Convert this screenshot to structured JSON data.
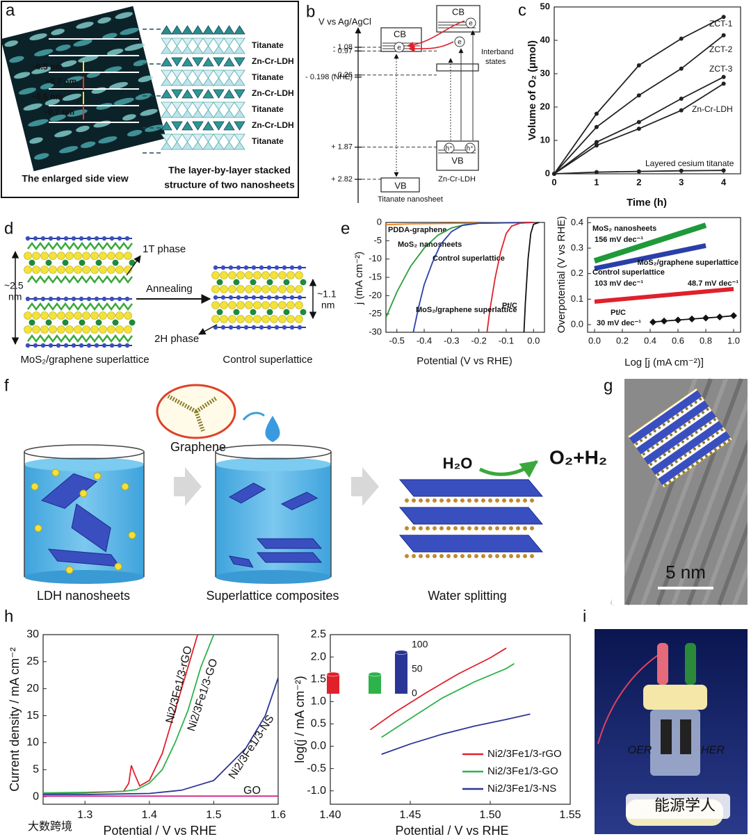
{
  "panel_labels": [
    "a",
    "b",
    "c",
    "d",
    "e",
    "f",
    "g",
    "h",
    "i"
  ],
  "panel_a": {
    "spacings": [
      "~0.5 nm",
      "~0.7 nm",
      "~0.5 nm",
      "~0.7 nm"
    ],
    "layers": [
      "Titanate",
      "Zn-Cr-LDH",
      "Titanate",
      "Zn-Cr-LDH",
      "Titanate",
      "Zn-Cr-LDH",
      "Titanate"
    ],
    "captions": [
      "The enlarged side view",
      "The layer-by-layer stacked",
      "structure of two nanosheets"
    ]
  },
  "panel_b": {
    "axis_label": "V vs Ag/AgCl",
    "levels": [
      {
        "value": -1.08,
        "label": "- 1.08"
      },
      {
        "value": -0.97,
        "label": "- 0.97"
      },
      {
        "value": -0.26,
        "label": "- 0.26"
      },
      {
        "value": -0.198,
        "label": "- 0.198 (NHE)"
      },
      {
        "value": 1.87,
        "label": "+ 1.87"
      },
      {
        "value": 2.82,
        "label": "+ 2.82"
      }
    ],
    "band_labels": [
      "CB",
      "CB",
      "VB",
      "VB"
    ],
    "interband": [
      "Interband",
      "states"
    ],
    "materials": [
      "Titanate nanosheet",
      "Zn-Cr-LDH"
    ],
    "carriers": [
      "e",
      "e",
      "e",
      "h⁺",
      "h⁺"
    ]
  },
  "panel_d": {
    "phases": [
      "1T phase",
      "2H phase"
    ],
    "process": "Annealing",
    "spacings": [
      [
        "~2.5",
        "nm"
      ],
      [
        "~1.1",
        "nm"
      ]
    ],
    "captions": [
      "MoS₂/graphene superlattice",
      "Control superlattice"
    ]
  },
  "panel_f": {
    "graphene": "Graphene",
    "reaction": [
      "H₂O",
      "O₂+H₂"
    ],
    "captions": [
      "LDH nanosheets",
      "Superlattice composites",
      "Water splitting"
    ]
  },
  "panel_g": {
    "scale_bar": "5 nm"
  },
  "panel_i": {
    "electrodes": [
      "OER",
      "HER"
    ]
  },
  "watermarks": [
    "能源学人",
    "大数跨境"
  ],
  "chart_data": [
    {
      "type": "line",
      "xlabel": "Time (h)",
      "ylabel": "Volume of O₂ (μmol)",
      "xlim": [
        0,
        4.4
      ],
      "ylim": [
        0,
        50
      ],
      "xticks": [
        0,
        1,
        2,
        3,
        4
      ],
      "yticks": [
        0,
        10,
        20,
        30,
        40,
        50
      ],
      "legend": "inline",
      "x": [
        0,
        1,
        2,
        3,
        4
      ],
      "series": [
        {
          "name": "ZCT-1",
          "color": "#222222",
          "marker": "circle",
          "values": [
            0,
            18,
            32.5,
            40.5,
            47
          ]
        },
        {
          "name": "ZCT-2",
          "color": "#222222",
          "marker": "circle",
          "values": [
            0,
            14,
            23.5,
            31.5,
            41.5
          ]
        },
        {
          "name": "ZCT-3",
          "color": "#222222",
          "marker": "circle",
          "values": [
            0,
            9.5,
            15.5,
            22.5,
            29
          ]
        },
        {
          "name": "Zn-Cr-LDH",
          "color": "#222222",
          "marker": "circle",
          "values": [
            0,
            8.5,
            13.5,
            19,
            27
          ]
        },
        {
          "name": "Layered cesium titanate",
          "color": "#222222",
          "marker": "circle",
          "values": [
            0,
            0.5,
            0.7,
            0.9,
            1
          ]
        }
      ]
    },
    {
      "type": "line",
      "xlabel": "Potential (V vs RHE)",
      "ylabel": "j (mA cm⁻²)",
      "xlim": [
        -0.54,
        0.04
      ],
      "ylim": [
        -30,
        0
      ],
      "xticks": [
        -0.5,
        -0.4,
        -0.3,
        -0.2,
        -0.1,
        {
          "value": 0,
          "label": "0.0"
        }
      ],
      "yticks": [
        0,
        -5,
        -10,
        -15,
        -20,
        -25,
        -30
      ],
      "legend": "inline",
      "series": [
        {
          "name": "PDDA-graphene",
          "color": "#f07f1a",
          "x": [
            -0.54,
            -0.45,
            -0.35,
            -0.25,
            -0.15,
            0
          ],
          "values": [
            -0.6,
            -0.4,
            -0.3,
            -0.2,
            -0.1,
            0
          ]
        },
        {
          "name": "MoS₂ nanosheets",
          "color": "#2a9d3a",
          "x": [
            -0.54,
            -0.5,
            -0.45,
            -0.4,
            -0.35,
            -0.3,
            -0.25,
            -0.2,
            0
          ],
          "values": [
            -26,
            -19,
            -12,
            -7,
            -3.5,
            -1.5,
            -0.6,
            -0.2,
            0
          ]
        },
        {
          "name": "Control superlattice",
          "color": "#2b3fa8",
          "x": [
            -0.44,
            -0.42,
            -0.4,
            -0.37,
            -0.34,
            -0.3,
            -0.26,
            -0.2,
            0
          ],
          "values": [
            -30,
            -23,
            -17,
            -11,
            -6,
            -2.5,
            -0.8,
            -0.2,
            0
          ]
        },
        {
          "name": "MoS₂/graphene superlattice",
          "color": "#e0202a",
          "x": [
            -0.17,
            -0.16,
            -0.14,
            -0.12,
            -0.1,
            -0.08,
            -0.05,
            0
          ],
          "values": [
            -30,
            -24,
            -15,
            -8,
            -3,
            -1,
            -0.2,
            0
          ]
        },
        {
          "name": "Pt/C",
          "color": "#111111",
          "x": [
            -0.035,
            -0.03,
            -0.02,
            -0.01,
            0,
            0.02
          ],
          "values": [
            -30,
            -22,
            -10,
            -3,
            -0.5,
            0
          ]
        }
      ]
    },
    {
      "type": "line",
      "xlabel": "Log [j (mA cm⁻²)]",
      "ylabel": "Overpotential (V vs RHE)",
      "xlim": [
        -0.05,
        1.05
      ],
      "ylim": [
        -0.03,
        0.42
      ],
      "xticks": [
        {
          "value": 0,
          "label": "0.0"
        },
        0.2,
        0.4,
        0.6,
        0.8,
        {
          "value": 1,
          "label": "1.0"
        }
      ],
      "yticks": [
        {
          "value": 0,
          "label": "0.0"
        },
        0.1,
        0.2,
        0.3,
        0.4
      ],
      "legend": "inline",
      "series": [
        {
          "name": "MoS₂ nanosheets",
          "annotation": "156 mV dec⁻¹",
          "color": "#1f9a3a",
          "line_width": 8,
          "x": [
            0,
            0.8
          ],
          "values": [
            0.25,
            0.39
          ]
        },
        {
          "name": "Control superlattice",
          "annotation": "103 mV dec⁻¹",
          "color": "#2b3fa8",
          "line_width": 7,
          "x": [
            0,
            0.8
          ],
          "values": [
            0.22,
            0.31
          ]
        },
        {
          "name": "MoS₂/graphene superlattice",
          "annotation": "48.7 mV dec⁻¹",
          "color": "#e0202a",
          "line_width": 6,
          "x": [
            0,
            1
          ],
          "values": [
            0.09,
            0.14
          ]
        },
        {
          "name": "Pt/C",
          "annotation": "30 mV dec⁻¹",
          "color": "#111111",
          "marker": "diamond",
          "x": [
            0.42,
            0.5,
            0.6,
            0.7,
            0.8,
            0.9,
            1
          ],
          "values": [
            0.01,
            0.014,
            0.018,
            0.022,
            0.026,
            0.03,
            0.035
          ]
        }
      ]
    },
    {
      "type": "line",
      "xlabel": "Potential / V vs RHE",
      "ylabel": "Current density / mA cm⁻²",
      "xlim": [
        1.235,
        1.6
      ],
      "ylim": [
        -1.4,
        30
      ],
      "xticks": [
        1.3,
        1.4,
        1.5,
        1.6
      ],
      "yticks": [
        0,
        5,
        10,
        15,
        20,
        25,
        30
      ],
      "legend": "inline",
      "series": [
        {
          "name": "Ni2/3Fe1/3-rGO",
          "color": "#e0202a",
          "x": [
            1.235,
            1.3,
            1.36,
            1.368,
            1.372,
            1.376,
            1.385,
            1.4,
            1.42,
            1.44,
            1.46,
            1.475
          ],
          "values": [
            0.6,
            0.7,
            1,
            2.5,
            5.8,
            4.5,
            2,
            3,
            8,
            16,
            24,
            30
          ]
        },
        {
          "name": "Ni2/3Fe1/3-GO",
          "color": "#2db34a",
          "x": [
            1.235,
            1.3,
            1.36,
            1.38,
            1.4,
            1.42,
            1.44,
            1.46,
            1.48,
            1.5
          ],
          "values": [
            0.7,
            0.8,
            1,
            1.3,
            2.5,
            5,
            10,
            16,
            24,
            30
          ]
        },
        {
          "name": "Ni2/3Fe1/3-NS",
          "color": "#2b3595",
          "x": [
            1.235,
            1.3,
            1.4,
            1.45,
            1.5,
            1.55,
            1.58,
            1.6
          ],
          "values": [
            0.4,
            0.4,
            0.6,
            1.2,
            3,
            9,
            15,
            22
          ]
        },
        {
          "name": "GO",
          "color": "#d0208a",
          "x": [
            1.235,
            1.6
          ],
          "values": [
            0.1,
            0.1
          ]
        }
      ]
    },
    {
      "type": "line",
      "xlabel": "Potential / V vs RHE",
      "ylabel": "log(j / mA cm⁻²)",
      "xlim": [
        1.4,
        1.55
      ],
      "ylim": [
        -1.3,
        2.5
      ],
      "xticks": [
        {
          "value": 1.4,
          "label": "1.40"
        },
        1.45,
        {
          "value": 1.5,
          "label": "1.50"
        },
        1.55
      ],
      "yticks": [
        {
          "value": -1,
          "label": "-1.0"
        },
        -0.5,
        {
          "value": 0,
          "label": "0.0"
        },
        0.5,
        {
          "value": 1,
          "label": "1.0"
        },
        1.5,
        {
          "value": 2,
          "label": "2.0"
        },
        2.5
      ],
      "legend": "lower right",
      "inset": {
        "yticks": [
          0,
          50,
          100
        ],
        "values": [
          40,
          40,
          85
        ]
      },
      "series": [
        {
          "name": "Ni2/3Fe1/3-rGO",
          "color": "#e0202a",
          "x": [
            1.425,
            1.44,
            1.46,
            1.48,
            1.5,
            1.51
          ],
          "values": [
            0.37,
            0.75,
            1.2,
            1.62,
            1.98,
            2.2
          ]
        },
        {
          "name": "Ni2/3Fe1/3-GO",
          "color": "#2db34a",
          "x": [
            1.432,
            1.45,
            1.47,
            1.49,
            1.51,
            1.515
          ],
          "values": [
            0.2,
            0.62,
            1.08,
            1.44,
            1.74,
            1.85
          ]
        },
        {
          "name": "Ni2/3Fe1/3-NS",
          "color": "#2b3595",
          "x": [
            1.432,
            1.45,
            1.47,
            1.49,
            1.51,
            1.525
          ],
          "values": [
            -0.18,
            0.05,
            0.27,
            0.45,
            0.6,
            0.72
          ]
        }
      ]
    }
  ]
}
